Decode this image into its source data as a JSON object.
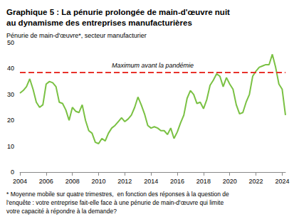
{
  "chart_data": {
    "type": "line",
    "title": "Graphique 5 : La pénurie prolongée de main-d'œuvre nuit\nau dynamisme des entreprises manufacturières",
    "subtitle": "Pénurie de main-d'œuvre*, secteur manufacturier",
    "footnote": "* Moyenne mobile sur quatre trimestres,  en fonction des réponses à la question de\nl'enquête : votre entreprise fait-elle face à une pénurie de main-d'œuvre qui limite\nvotre capacité à répondre à la demande?",
    "annotations": [
      {
        "text": "Maximum avant la pandémie",
        "y": 38.5,
        "color": "#e8322b",
        "line_style": "dashed"
      }
    ],
    "x": [
      2004,
      2004.25,
      2004.5,
      2004.75,
      2005,
      2005.25,
      2005.5,
      2005.75,
      2006,
      2006.25,
      2006.5,
      2006.75,
      2007,
      2007.25,
      2007.5,
      2007.75,
      2008,
      2008.25,
      2008.5,
      2008.75,
      2009,
      2009.25,
      2009.5,
      2009.75,
      2010,
      2010.25,
      2010.5,
      2010.75,
      2011,
      2011.25,
      2011.5,
      2011.75,
      2012,
      2012.25,
      2012.5,
      2012.75,
      2013,
      2013.25,
      2013.5,
      2013.75,
      2014,
      2014.25,
      2014.5,
      2014.75,
      2015,
      2015.25,
      2015.5,
      2015.75,
      2016,
      2016.25,
      2016.5,
      2016.75,
      2017,
      2017.25,
      2017.5,
      2017.75,
      2018,
      2018.25,
      2018.5,
      2018.75,
      2019,
      2019.25,
      2019.5,
      2019.75,
      2020,
      2020.25,
      2020.5,
      2020.75,
      2021,
      2021.25,
      2021.5,
      2021.75,
      2022,
      2022.25,
      2022.5,
      2022.75,
      2023,
      2023.25,
      2023.5,
      2023.75,
      2024,
      2024.25
    ],
    "values": [
      30.5,
      31.5,
      33,
      36,
      32,
      27,
      25,
      26,
      34,
      35,
      34.5,
      33,
      27,
      26.5,
      24,
      20,
      25,
      23.5,
      23,
      26,
      20,
      16,
      15,
      11.5,
      11,
      13,
      12,
      15,
      17,
      18,
      19.5,
      21,
      19.5,
      20.5,
      22,
      25,
      29,
      26,
      22.5,
      18,
      17,
      17.5,
      17,
      16,
      16,
      14.5,
      17,
      13,
      15.5,
      19,
      22,
      28.5,
      31.5,
      30,
      26.5,
      27,
      24.5,
      28,
      33.5,
      35.5,
      38,
      37,
      33,
      36.5,
      34,
      32,
      26,
      22.5,
      23,
      27,
      30,
      37,
      39,
      40.5,
      41,
      41.5,
      41.5,
      45.5,
      40.5,
      34,
      32,
      22
    ],
    "color": "#7ac143",
    "xlim": [
      2004,
      2024.25
    ],
    "xticks": [
      2004,
      2006,
      2008,
      2010,
      2012,
      2014,
      2016,
      2018,
      2020,
      2022,
      2024
    ],
    "ylim": [
      0,
      50
    ],
    "yticks": [
      0,
      10,
      20,
      30,
      40,
      50
    ],
    "grid": false
  }
}
